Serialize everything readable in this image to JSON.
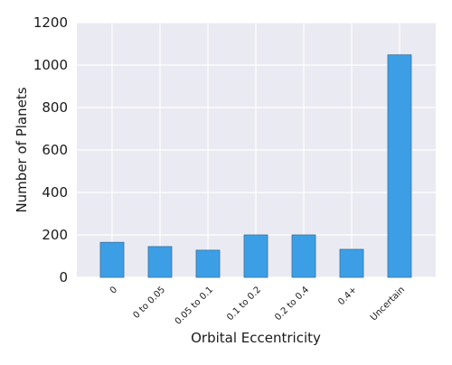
{
  "chart_data": {
    "type": "bar",
    "categories": [
      "0",
      "0 to 0.05",
      "0.05 to 0.1",
      "0.1 to 0.2",
      "0.2 to 0.4",
      "0.4+",
      "Uncertain"
    ],
    "values": [
      165,
      145,
      128,
      200,
      200,
      132,
      1048
    ],
    "xlabel": "Orbital Eccentricity",
    "ylabel": "Number of Planets",
    "ylim": [
      0,
      1200
    ],
    "yticks": [
      0,
      200,
      400,
      600,
      800,
      1000,
      1200
    ],
    "grid": true,
    "legend": "none",
    "colors": {
      "bar": "#3c9fe6",
      "bar_edge": "#3a6f9a",
      "plot_background": "#eaeaf2",
      "grid": "#ffffff"
    }
  }
}
